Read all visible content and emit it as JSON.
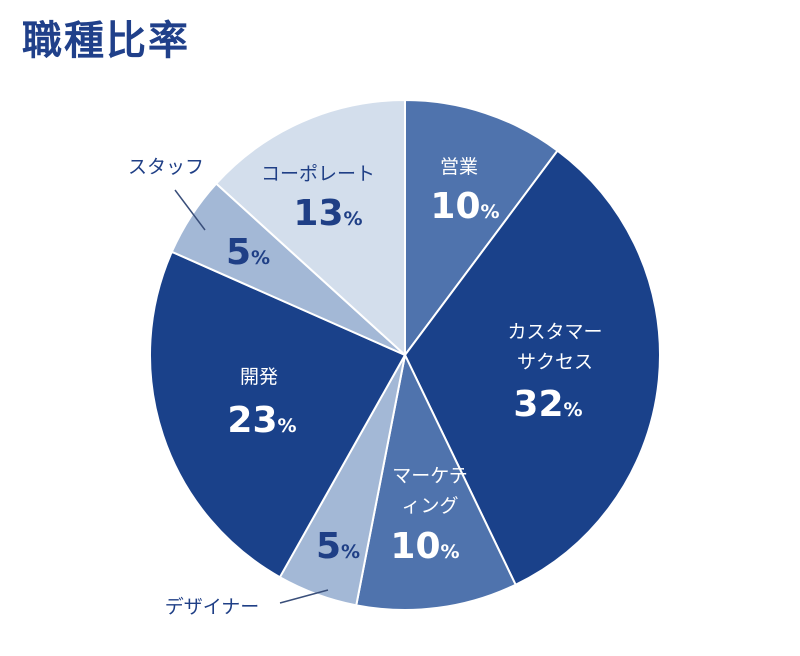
{
  "chart_data": {
    "type": "pie",
    "title": "職種比率",
    "unit": "%",
    "slices": [
      {
        "label": "営業",
        "value": 10,
        "color": "#4f73ad",
        "text": "#ffffff"
      },
      {
        "label": "カスタマーサクセス",
        "value": 32,
        "color": "#1a418a",
        "text": "#ffffff"
      },
      {
        "label": "マーケティング",
        "value": 10,
        "color": "#4f73ad",
        "text": "#ffffff"
      },
      {
        "label": "デザイナー",
        "value": 5,
        "color": "#a3b8d6",
        "text": "#1f3f86"
      },
      {
        "label": "開発",
        "value": 23,
        "color": "#1a418a",
        "text": "#ffffff"
      },
      {
        "label": "スタッフ",
        "value": 5,
        "color": "#a3b8d6",
        "text": "#1f3f86"
      },
      {
        "label": "コーポレート",
        "value": 13,
        "color": "#d3deec",
        "text": "#1f3f86"
      }
    ]
  }
}
